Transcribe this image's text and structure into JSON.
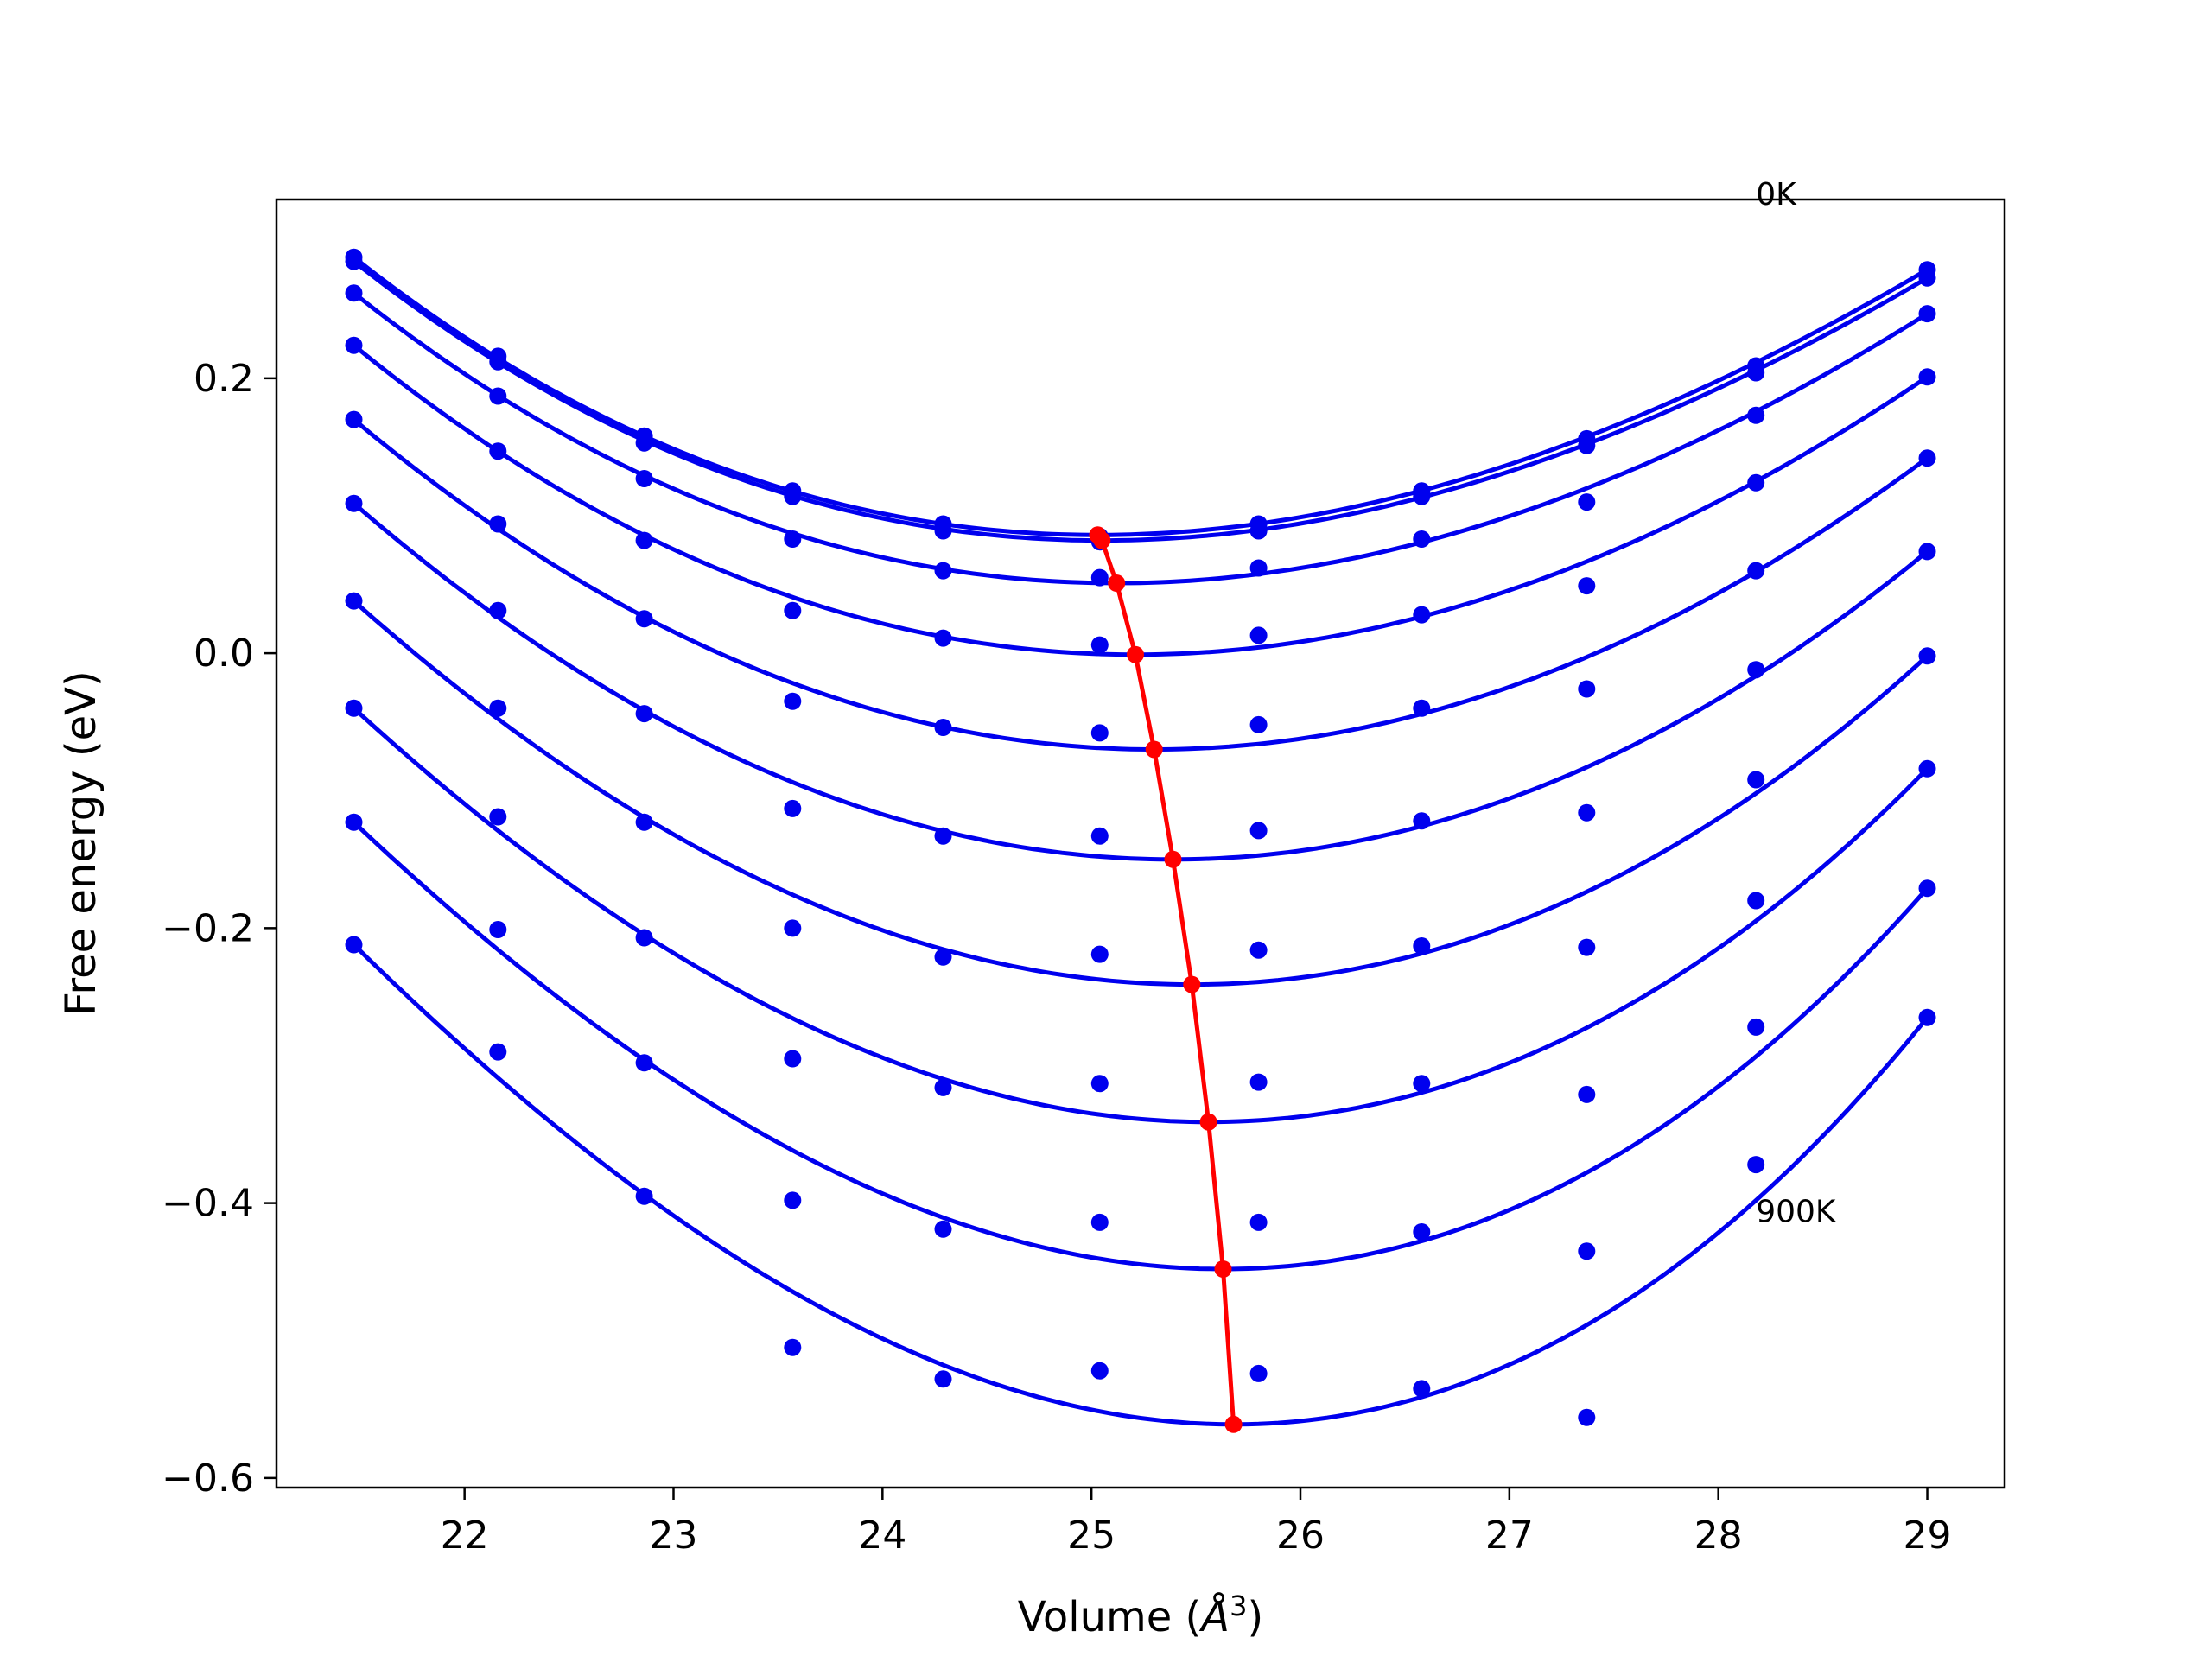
{
  "chart_data": {
    "type": "scatter",
    "title": "",
    "xlabel": "Volume (",
    "xlabel_unit_base": "Å",
    "xlabel_unit_exp": "3",
    "xlabel_close": ")",
    "ylabel": "Free energy (eV)",
    "xlim": [
      21.1,
      29.37
    ],
    "ylim": [
      -0.607,
      0.33
    ],
    "xticks": [
      22,
      23,
      24,
      25,
      26,
      27,
      28,
      29
    ],
    "xtick_labels": [
      "22",
      "23",
      "24",
      "25",
      "26",
      "27",
      "28",
      "29"
    ],
    "yticks": [
      -0.6,
      -0.4,
      -0.2,
      0.0,
      0.2
    ],
    "ytick_labels": [
      "−0.6",
      "−0.4",
      "−0.2",
      "0.0",
      "0.2"
    ],
    "grid": false,
    "annotations": [
      {
        "text": "0K",
        "x": 28.18,
        "y": 0.335
      },
      {
        "text": "900K",
        "x": 28.18,
        "y": -0.405
      }
    ],
    "colors": {
      "fits": "#0000ee",
      "points": "#0000ee",
      "minima": "#ff0000",
      "axes": "#000000"
    },
    "x": [
      21.47,
      22.16,
      22.86,
      23.57,
      24.29,
      25.04,
      25.8,
      26.58,
      27.37,
      28.18,
      29.0
    ],
    "series": [
      {
        "y": [
          0.288,
          0.216,
          0.158,
          0.118,
          0.094,
          0.085,
          0.094,
          0.118,
          0.156,
          0.209,
          0.279
        ],
        "min_x": 25.03,
        "min_y": 0.086
      },
      {
        "y": [
          0.285,
          0.212,
          0.153,
          0.114,
          0.089,
          0.081,
          0.089,
          0.114,
          0.151,
          0.204,
          0.273
        ],
        "min_x": 25.05,
        "min_y": 0.082
      },
      {
        "y": [
          0.262,
          0.187,
          0.127,
          0.083,
          0.06,
          0.055,
          0.062,
          0.083,
          0.11,
          0.173,
          0.247
        ],
        "min_x": 25.12,
        "min_y": 0.051
      },
      {
        "y": [
          0.224,
          0.147,
          0.082,
          0.031,
          0.011,
          0.006,
          0.013,
          0.028,
          0.049,
          0.124,
          0.201
        ],
        "min_x": 25.21,
        "min_y": -0.001
      },
      {
        "y": [
          0.17,
          0.094,
          0.025,
          -0.035,
          -0.054,
          -0.058,
          -0.052,
          -0.04,
          -0.026,
          0.06,
          0.142
        ],
        "min_x": 25.3,
        "min_y": -0.07
      },
      {
        "y": [
          0.109,
          0.031,
          -0.044,
          -0.113,
          -0.133,
          -0.133,
          -0.129,
          -0.122,
          -0.116,
          -0.012,
          0.074
        ],
        "min_x": 25.39,
        "min_y": -0.15
      },
      {
        "y": [
          0.038,
          -0.04,
          -0.123,
          -0.2,
          -0.221,
          -0.219,
          -0.216,
          -0.213,
          -0.214,
          -0.092,
          -0.002
        ],
        "min_x": 25.48,
        "min_y": -0.241
      },
      {
        "y": [
          -0.04,
          -0.119,
          -0.207,
          -0.295,
          -0.316,
          -0.313,
          -0.312,
          -0.313,
          -0.321,
          -0.18,
          -0.084
        ],
        "min_x": 25.56,
        "min_y": -0.341
      },
      {
        "y": [
          -0.123,
          -0.201,
          -0.298,
          -0.398,
          -0.419,
          -0.414,
          -0.414,
          -0.421,
          -0.435,
          -0.272,
          -0.171
        ],
        "min_x": 25.63,
        "min_y": -0.448
      },
      {
        "y": [
          -0.212,
          -0.29,
          -0.395,
          -0.505,
          -0.528,
          -0.522,
          -0.524,
          -0.535,
          -0.556,
          -0.372,
          -0.265
        ],
        "min_x": 25.68,
        "min_y": -0.561
      }
    ]
  }
}
